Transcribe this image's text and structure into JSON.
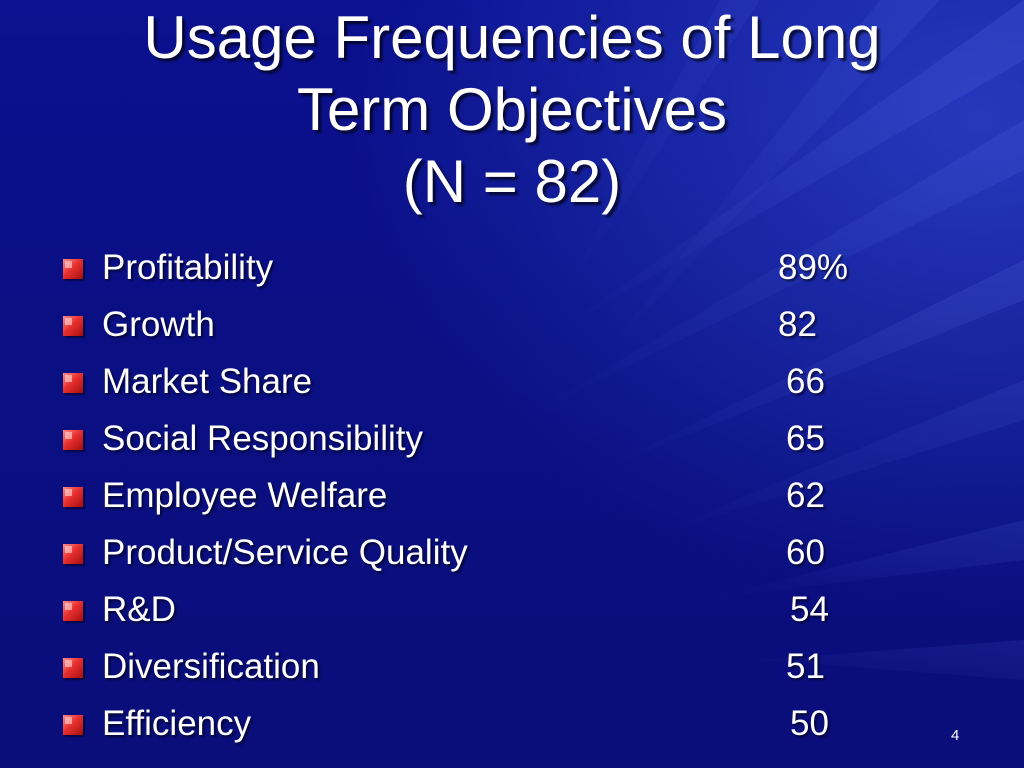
{
  "slide": {
    "title_lines": [
      "Usage Frequencies of Long",
      "Term Objectives",
      "(N = 82)"
    ],
    "items": [
      {
        "label": "Profitability",
        "value": "89%"
      },
      {
        "label": "Growth",
        "value": "82"
      },
      {
        "label": "Market Share",
        "value": "66"
      },
      {
        "label": "Social Responsibility",
        "value": "65"
      },
      {
        "label": "Employee Welfare",
        "value": "62"
      },
      {
        "label": "Product/Service Quality",
        "value": "60"
      },
      {
        "label": "R&D",
        "value": "54"
      },
      {
        "label": "Diversification",
        "value": "51"
      },
      {
        "label": "Efficiency",
        "value": "50"
      }
    ],
    "page_number": "4",
    "colors": {
      "background": "#0a0f82",
      "text": "#ffffff",
      "bullet": "#e8302f"
    }
  }
}
